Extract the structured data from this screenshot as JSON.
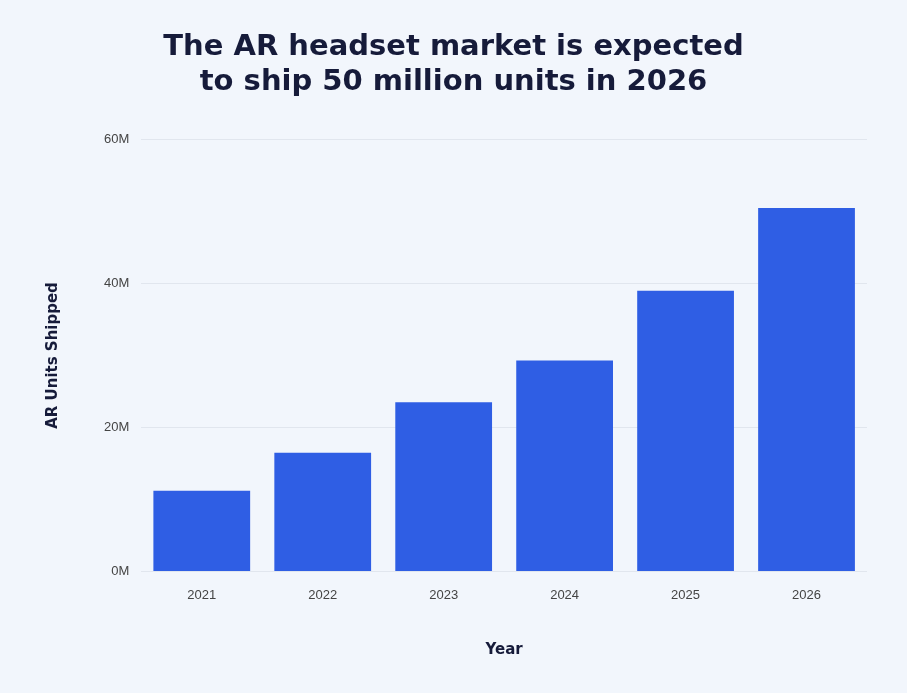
{
  "chart_data": {
    "type": "bar",
    "title": [
      "The AR headset market is expected",
      "to ship 50 million units in 2026"
    ],
    "x_label": "Year",
    "y_label": "AR Units Shipped",
    "categories": [
      "2021",
      "2022",
      "2023",
      "2024",
      "2025",
      "2026"
    ],
    "values": [
      11.2,
      16.5,
      23.5,
      29.3,
      39,
      50.5
    ],
    "color": "#2f5ee4",
    "ylim": [
      0,
      60
    ],
    "yticks": [
      {
        "value": 0,
        "label": "0M"
      },
      {
        "value": 20,
        "label": "20M"
      },
      {
        "value": 40,
        "label": "40M"
      },
      {
        "value": 60,
        "label": "60M"
      }
    ],
    "grid": true
  }
}
